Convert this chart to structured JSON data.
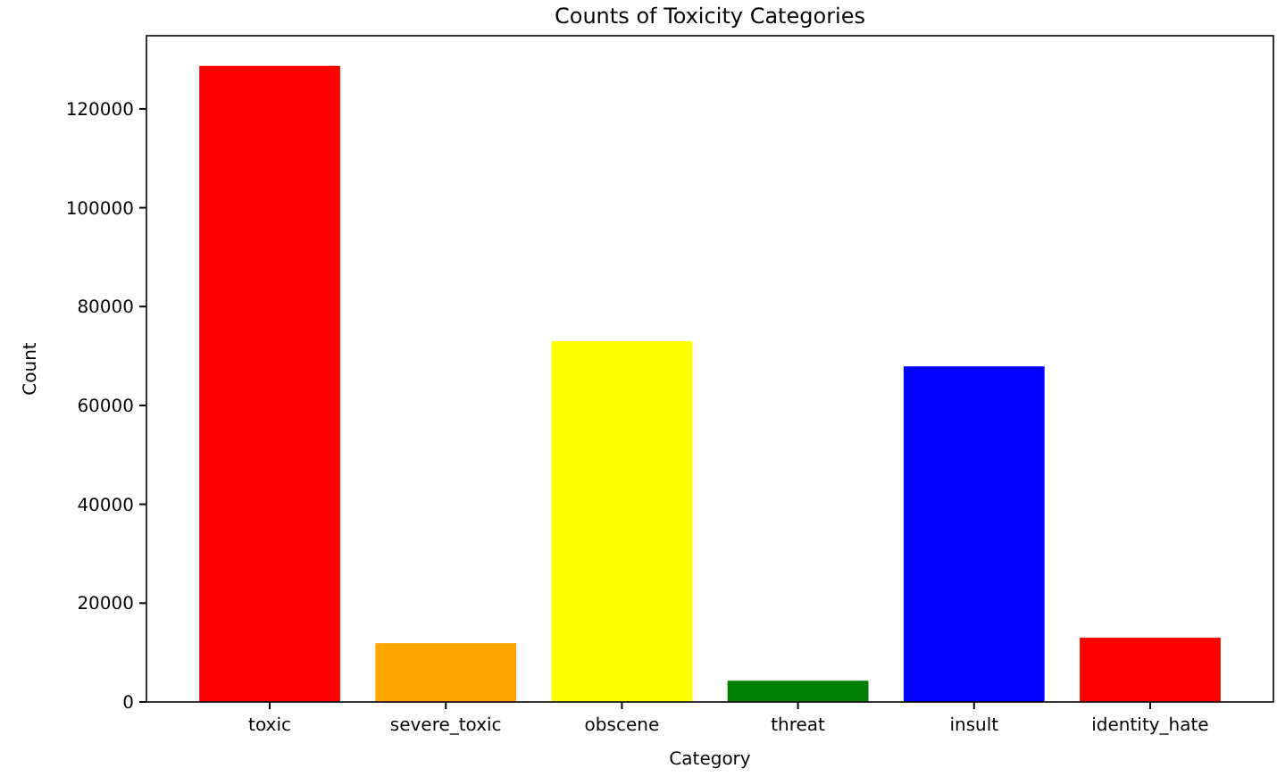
{
  "chart_data": {
    "type": "bar",
    "title": "Counts of Toxicity Categories",
    "xlabel": "Category",
    "ylabel": "Count",
    "categories": [
      "toxic",
      "severe_toxic",
      "obscene",
      "threat",
      "insult",
      "identity_hate"
    ],
    "values": [
      128700,
      11900,
      73000,
      4300,
      67900,
      13000
    ],
    "colors": [
      "#ff0000",
      "#ffa500",
      "#ffff00",
      "#008000",
      "#0000ff",
      "#ff0000"
    ],
    "ylim": [
      0,
      134800
    ],
    "yticks": [
      0,
      20000,
      40000,
      60000,
      80000,
      100000,
      120000
    ],
    "grid": false
  }
}
